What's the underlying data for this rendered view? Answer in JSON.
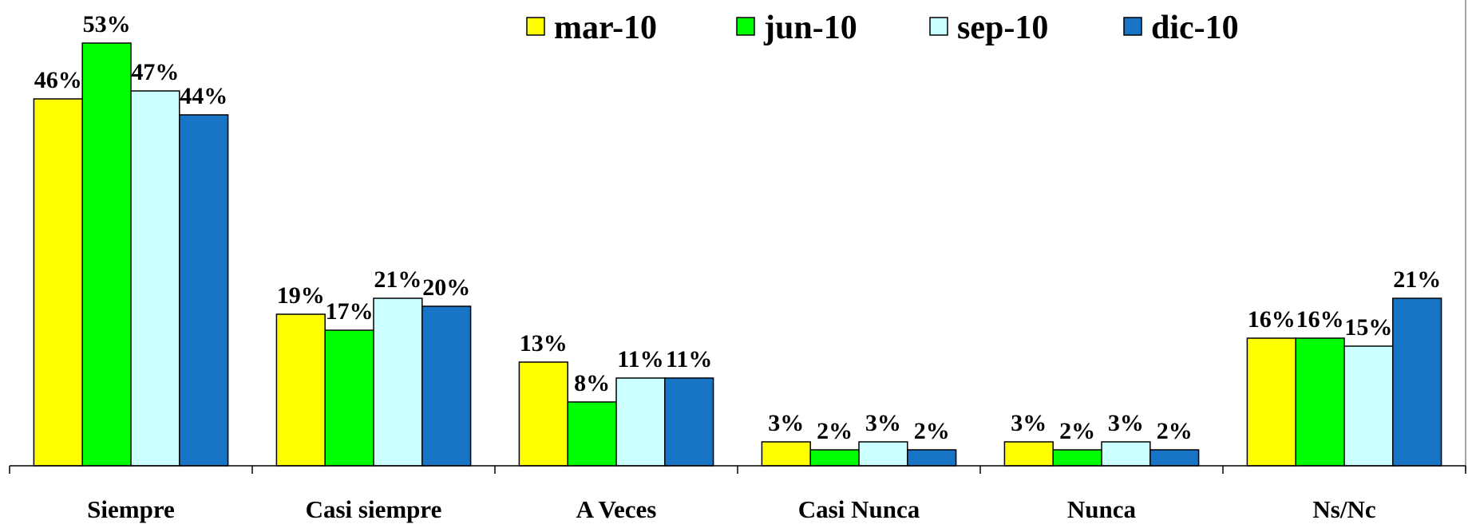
{
  "chart_data": {
    "type": "bar",
    "categories": [
      "Siempre",
      "Casi siempre",
      "A Veces",
      "Casi Nunca",
      "Nunca",
      "Ns/Nc"
    ],
    "series": [
      {
        "name": "mar-10",
        "color": "#ffff00",
        "values": [
          46,
          19,
          13,
          3,
          3,
          16
        ],
        "value_labels": [
          "46%",
          "19%",
          "13%",
          "3%",
          "3%",
          "16%"
        ]
      },
      {
        "name": "jun-10",
        "color": "#00ff00",
        "values": [
          53,
          17,
          8,
          2,
          2,
          16
        ],
        "value_labels": [
          "53%",
          "17%",
          "8%",
          "2%",
          "2%",
          "16%"
        ]
      },
      {
        "name": "sep-10",
        "color": "#ccffff",
        "values": [
          47,
          21,
          11,
          3,
          3,
          15
        ],
        "value_labels": [
          "47%",
          "21%",
          "11%",
          "3%",
          "3%",
          "15%"
        ]
      },
      {
        "name": "dic-10",
        "color": "#1874c4",
        "values": [
          44,
          20,
          11,
          2,
          2,
          21
        ],
        "value_labels": [
          "44%",
          "20%",
          "11%",
          "2%",
          "2%",
          "21%"
        ]
      }
    ]
  }
}
